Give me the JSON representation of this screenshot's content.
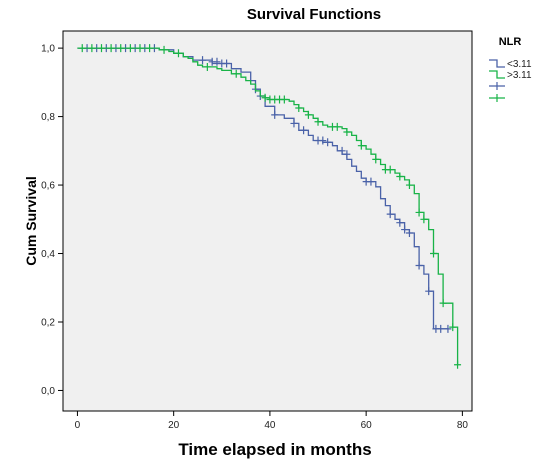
{
  "colors": {
    "plot_background": "#f0f0f0",
    "series_1": "#4a62a8",
    "series_2": "#18b347"
  },
  "chart_data": {
    "type": "line",
    "subtype": "kaplan-meier step",
    "title": "Survival Functions",
    "xlabel": "Time elapsed in months",
    "ylabel": "Cum Survival",
    "xlim": [
      -3,
      82
    ],
    "ylim": [
      -0.06,
      1.05
    ],
    "x_ticks": [
      0,
      20,
      40,
      60,
      80
    ],
    "x_tick_labels": [
      "0",
      "20",
      "40",
      "60",
      "80"
    ],
    "y_ticks": [
      0.0,
      0.2,
      0.4,
      0.6,
      0.8,
      1.0
    ],
    "y_tick_labels": [
      "0,0",
      "0,2",
      "0,4",
      "0,6",
      "0,8",
      "1,0"
    ],
    "grid": false,
    "legend": {
      "title": "NLR",
      "placement": "right",
      "entries": [
        "<3.11",
        ">3.11",
        "",
        ""
      ]
    },
    "series": [
      {
        "name": "<3.11",
        "color": "#4a62a8",
        "steps": [
          [
            0,
            1.0
          ],
          [
            17,
            0.995
          ],
          [
            20,
            0.985
          ],
          [
            22,
            0.975
          ],
          [
            24,
            0.965
          ],
          [
            28,
            0.955
          ],
          [
            32,
            0.94
          ],
          [
            34,
            0.93
          ],
          [
            36,
            0.905
          ],
          [
            37,
            0.88
          ],
          [
            38,
            0.86
          ],
          [
            39,
            0.83
          ],
          [
            41,
            0.805
          ],
          [
            43,
            0.795
          ],
          [
            45,
            0.78
          ],
          [
            46,
            0.76
          ],
          [
            48,
            0.745
          ],
          [
            49,
            0.73
          ],
          [
            51,
            0.725
          ],
          [
            53,
            0.715
          ],
          [
            54,
            0.7
          ],
          [
            55,
            0.69
          ],
          [
            56,
            0.675
          ],
          [
            57,
            0.655
          ],
          [
            58,
            0.64
          ],
          [
            59,
            0.62
          ],
          [
            60,
            0.61
          ],
          [
            62,
            0.595
          ],
          [
            63,
            0.56
          ],
          [
            64,
            0.54
          ],
          [
            65,
            0.515
          ],
          [
            66,
            0.5
          ],
          [
            67,
            0.49
          ],
          [
            68,
            0.47
          ],
          [
            69,
            0.46
          ],
          [
            70,
            0.42
          ],
          [
            71,
            0.365
          ],
          [
            72,
            0.34
          ],
          [
            73,
            0.29
          ],
          [
            74,
            0.18
          ],
          [
            77,
            0.18
          ]
        ],
        "censored": [
          [
            2,
            1.0
          ],
          [
            4,
            1.0
          ],
          [
            6,
            1.0
          ],
          [
            8,
            1.0
          ],
          [
            10,
            1.0
          ],
          [
            12,
            1.0
          ],
          [
            14,
            1.0
          ],
          [
            16,
            1.0
          ],
          [
            26,
            0.965
          ],
          [
            28,
            0.96
          ],
          [
            29,
            0.96
          ],
          [
            30,
            0.955
          ],
          [
            31,
            0.955
          ],
          [
            37,
            0.88
          ],
          [
            38,
            0.86
          ],
          [
            41,
            0.805
          ],
          [
            45,
            0.78
          ],
          [
            47,
            0.76
          ],
          [
            50,
            0.73
          ],
          [
            51,
            0.73
          ],
          [
            52,
            0.725
          ],
          [
            55,
            0.7
          ],
          [
            56,
            0.69
          ],
          [
            60,
            0.61
          ],
          [
            61,
            0.61
          ],
          [
            65,
            0.515
          ],
          [
            67,
            0.49
          ],
          [
            68,
            0.47
          ],
          [
            69,
            0.46
          ],
          [
            71,
            0.365
          ],
          [
            73,
            0.29
          ],
          [
            74.5,
            0.18
          ],
          [
            75.5,
            0.18
          ],
          [
            77,
            0.18
          ]
        ]
      },
      {
        "name": ">3.11",
        "color": "#18b347",
        "steps": [
          [
            0,
            1.0
          ],
          [
            17,
            0.995
          ],
          [
            19,
            0.99
          ],
          [
            20,
            0.985
          ],
          [
            22,
            0.975
          ],
          [
            23,
            0.97
          ],
          [
            24,
            0.96
          ],
          [
            25,
            0.95
          ],
          [
            26,
            0.945
          ],
          [
            29,
            0.94
          ],
          [
            30,
            0.935
          ],
          [
            32,
            0.925
          ],
          [
            34,
            0.915
          ],
          [
            35,
            0.905
          ],
          [
            36,
            0.895
          ],
          [
            37,
            0.875
          ],
          [
            38,
            0.86
          ],
          [
            39,
            0.855
          ],
          [
            40,
            0.85
          ],
          [
            44,
            0.845
          ],
          [
            45,
            0.835
          ],
          [
            46,
            0.825
          ],
          [
            47,
            0.815
          ],
          [
            48,
            0.805
          ],
          [
            49,
            0.795
          ],
          [
            50,
            0.785
          ],
          [
            51,
            0.775
          ],
          [
            52,
            0.77
          ],
          [
            55,
            0.765
          ],
          [
            56,
            0.755
          ],
          [
            57,
            0.745
          ],
          [
            58,
            0.73
          ],
          [
            59,
            0.715
          ],
          [
            60,
            0.705
          ],
          [
            61,
            0.69
          ],
          [
            62,
            0.675
          ],
          [
            63,
            0.66
          ],
          [
            64,
            0.645
          ],
          [
            66,
            0.635
          ],
          [
            67,
            0.625
          ],
          [
            68,
            0.615
          ],
          [
            69,
            0.6
          ],
          [
            70,
            0.575
          ],
          [
            71,
            0.52
          ],
          [
            72,
            0.5
          ],
          [
            73,
            0.47
          ],
          [
            74,
            0.4
          ],
          [
            75,
            0.34
          ],
          [
            76,
            0.255
          ],
          [
            78,
            0.185
          ],
          [
            79,
            0.075
          ]
        ],
        "censored": [
          [
            1,
            1.0
          ],
          [
            3,
            1.0
          ],
          [
            5,
            1.0
          ],
          [
            7,
            1.0
          ],
          [
            9,
            1.0
          ],
          [
            11,
            1.0
          ],
          [
            13,
            1.0
          ],
          [
            15,
            1.0
          ],
          [
            18,
            0.995
          ],
          [
            21,
            0.985
          ],
          [
            27,
            0.945
          ],
          [
            33,
            0.925
          ],
          [
            39,
            0.855
          ],
          [
            40,
            0.85
          ],
          [
            41,
            0.85
          ],
          [
            42,
            0.85
          ],
          [
            43,
            0.85
          ],
          [
            46,
            0.825
          ],
          [
            48,
            0.805
          ],
          [
            50,
            0.785
          ],
          [
            53,
            0.77
          ],
          [
            54,
            0.77
          ],
          [
            56,
            0.755
          ],
          [
            59,
            0.715
          ],
          [
            62,
            0.675
          ],
          [
            64,
            0.645
          ],
          [
            65,
            0.645
          ],
          [
            67,
            0.625
          ],
          [
            69,
            0.6
          ],
          [
            71,
            0.52
          ],
          [
            72,
            0.5
          ],
          [
            74,
            0.4
          ],
          [
            76,
            0.255
          ],
          [
            78,
            0.185
          ],
          [
            79,
            0.075
          ]
        ]
      }
    ]
  }
}
